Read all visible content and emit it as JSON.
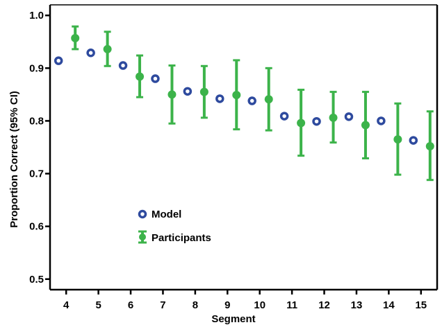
{
  "chart_data": {
    "type": "scatter",
    "xlabel": "Segment",
    "ylabel": "Proportion Correct (95% CI)",
    "x_ticks": [
      "4",
      "5",
      "6",
      "7",
      "8",
      "9",
      "10",
      "11",
      "12",
      "13",
      "14",
      "15"
    ],
    "y_ticks": [
      "0.5",
      "0.6",
      "0.7",
      "0.8",
      "0.9",
      "1.0"
    ],
    "xlim": [
      3.5,
      15.5
    ],
    "ylim": [
      0.48,
      1.02
    ],
    "grid": false,
    "legend_position": "center-left",
    "colors": {
      "model": "#2e4a9e",
      "participants": "#3cb34a"
    },
    "series": [
      {
        "name": "Model",
        "marker": "ring",
        "x": [
          4,
          5,
          6,
          7,
          8,
          9,
          10,
          11,
          12,
          13,
          14,
          15
        ],
        "y": [
          0.914,
          0.929,
          0.905,
          0.88,
          0.856,
          0.842,
          0.838,
          0.809,
          0.799,
          0.808,
          0.8,
          0.763
        ]
      },
      {
        "name": "Participants",
        "marker": "dot-with-errorbar",
        "x": [
          4,
          5,
          6,
          7,
          8,
          9,
          10,
          11,
          12,
          13,
          14,
          15
        ],
        "y": [
          0.957,
          0.936,
          0.884,
          0.85,
          0.855,
          0.849,
          0.841,
          0.796,
          0.806,
          0.792,
          0.765,
          0.752
        ],
        "ci_low": [
          0.936,
          0.904,
          0.845,
          0.795,
          0.806,
          0.784,
          0.782,
          0.734,
          0.759,
          0.729,
          0.698,
          0.688
        ],
        "ci_high": [
          0.979,
          0.969,
          0.924,
          0.905,
          0.904,
          0.915,
          0.9,
          0.859,
          0.855,
          0.855,
          0.833,
          0.818
        ]
      }
    ]
  }
}
